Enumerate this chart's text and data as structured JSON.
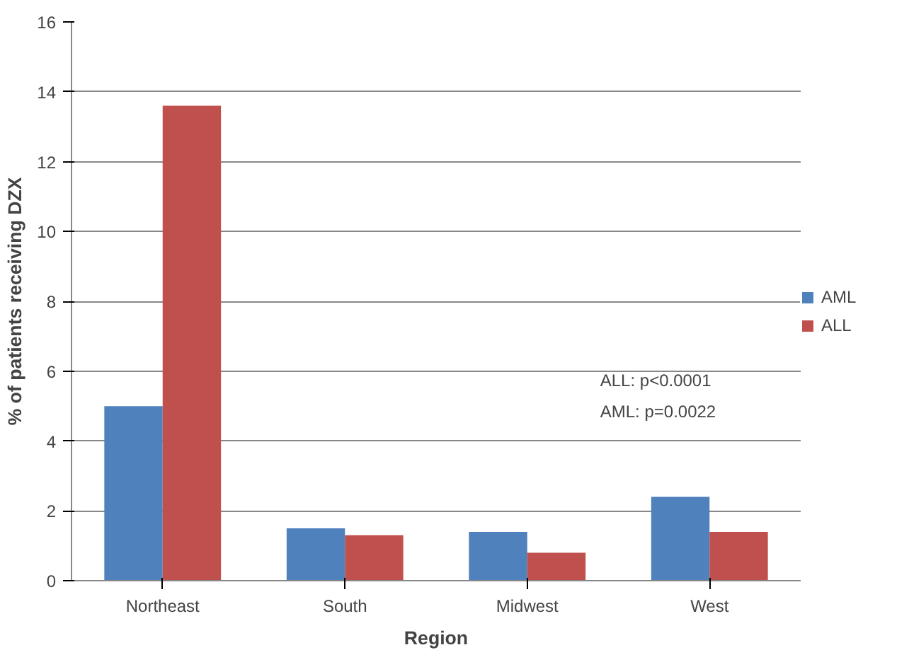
{
  "chart_data": {
    "type": "bar",
    "xlabel": "Region",
    "ylabel": "% of patients receiving DZX",
    "categories": [
      "Northeast",
      "South",
      "Midwest",
      "West"
    ],
    "series": [
      {
        "name": "AML",
        "color": "#4f81bd",
        "values": [
          5.0,
          1.5,
          1.4,
          2.4
        ]
      },
      {
        "name": "ALL",
        "color": "#c0504d",
        "values": [
          13.6,
          1.3,
          0.8,
          1.4
        ]
      }
    ],
    "ylim": [
      0,
      16
    ],
    "yticks": [
      0,
      2,
      4,
      6,
      8,
      10,
      12,
      14,
      16
    ],
    "grid": "y",
    "legend": "right",
    "annotations": [
      "ALL: p<0.0001",
      "AML: p=0.0022"
    ]
  }
}
